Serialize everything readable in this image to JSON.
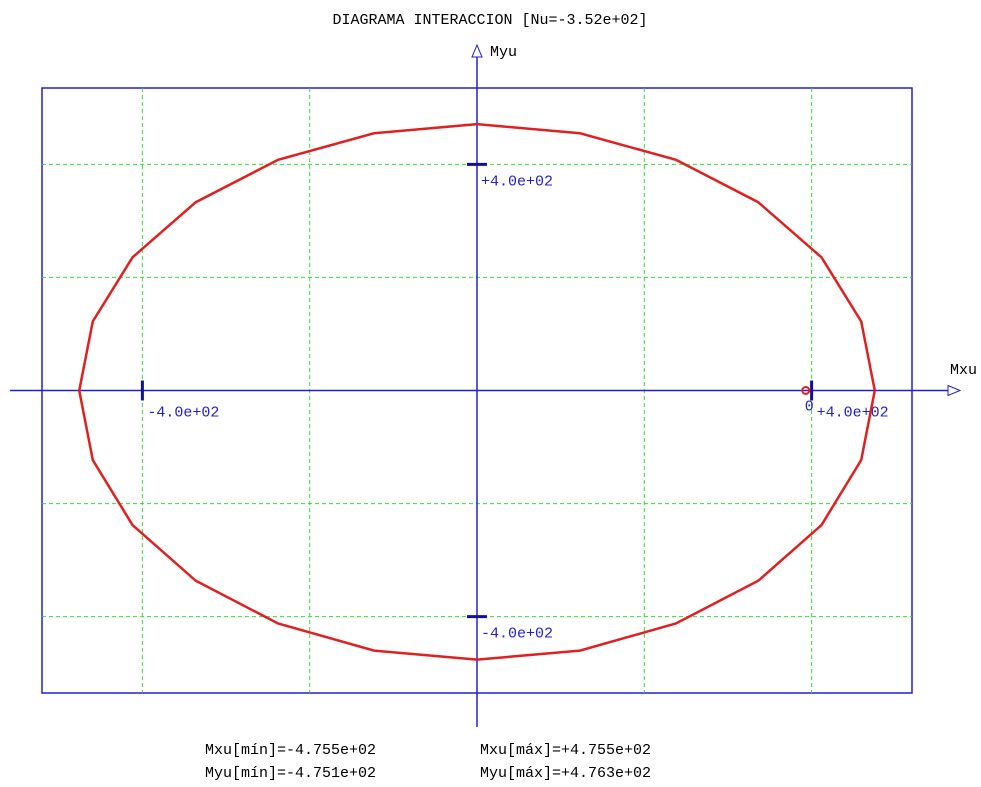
{
  "chart_data": {
    "type": "line",
    "title": "DIAGRAMA INTERACCION [Nu=-3.52e+02]",
    "x_label": "Mxu",
    "y_label": "Myu",
    "xlim": [
      -520,
      520
    ],
    "ylim": [
      -535,
      535
    ],
    "xticks": [
      {
        "value": -400,
        "label": "-4.0e+02"
      },
      {
        "value": 400,
        "label": "+4.0e+02"
      }
    ],
    "yticks": [
      {
        "value": 400,
        "label": "+4.0e+02"
      },
      {
        "value": -400,
        "label": "-4.0e+02"
      }
    ],
    "xgrid": [
      -400,
      -200,
      200,
      400
    ],
    "ygrid": [
      -400,
      -200,
      200,
      400
    ],
    "grid": true,
    "x": [
      475.5,
      459.3,
      411.8,
      336.2,
      237.8,
      123.1,
      0,
      -123.1,
      -237.8,
      -336.2,
      -411.8,
      -459.3,
      -475.5,
      -459.3,
      -411.8,
      -336.2,
      -237.8,
      -123.1,
      0,
      123.1,
      237.8,
      336.2,
      411.8,
      459.3,
      475.5
    ],
    "series": [
      {
        "color": "#e02020",
        "values": [
          0,
          122,
          235.5,
          333,
          408,
          455,
          471,
          455,
          408,
          333,
          235.5,
          122,
          0,
          -123,
          -238,
          -336.5,
          -412,
          -460,
          -476,
          -460,
          -412,
          -336.5,
          -238,
          -123,
          0
        ]
      }
    ],
    "point": {
      "x": 393,
      "y": 0,
      "label": "0",
      "color": "#e02020"
    },
    "annotations": [
      "Mxu[mín]=-4.755e+02",
      "Mxu[máx]=+4.755e+02",
      "Myu[mín]=-4.751e+02",
      "Myu[máx]=+4.763e+02"
    ]
  }
}
